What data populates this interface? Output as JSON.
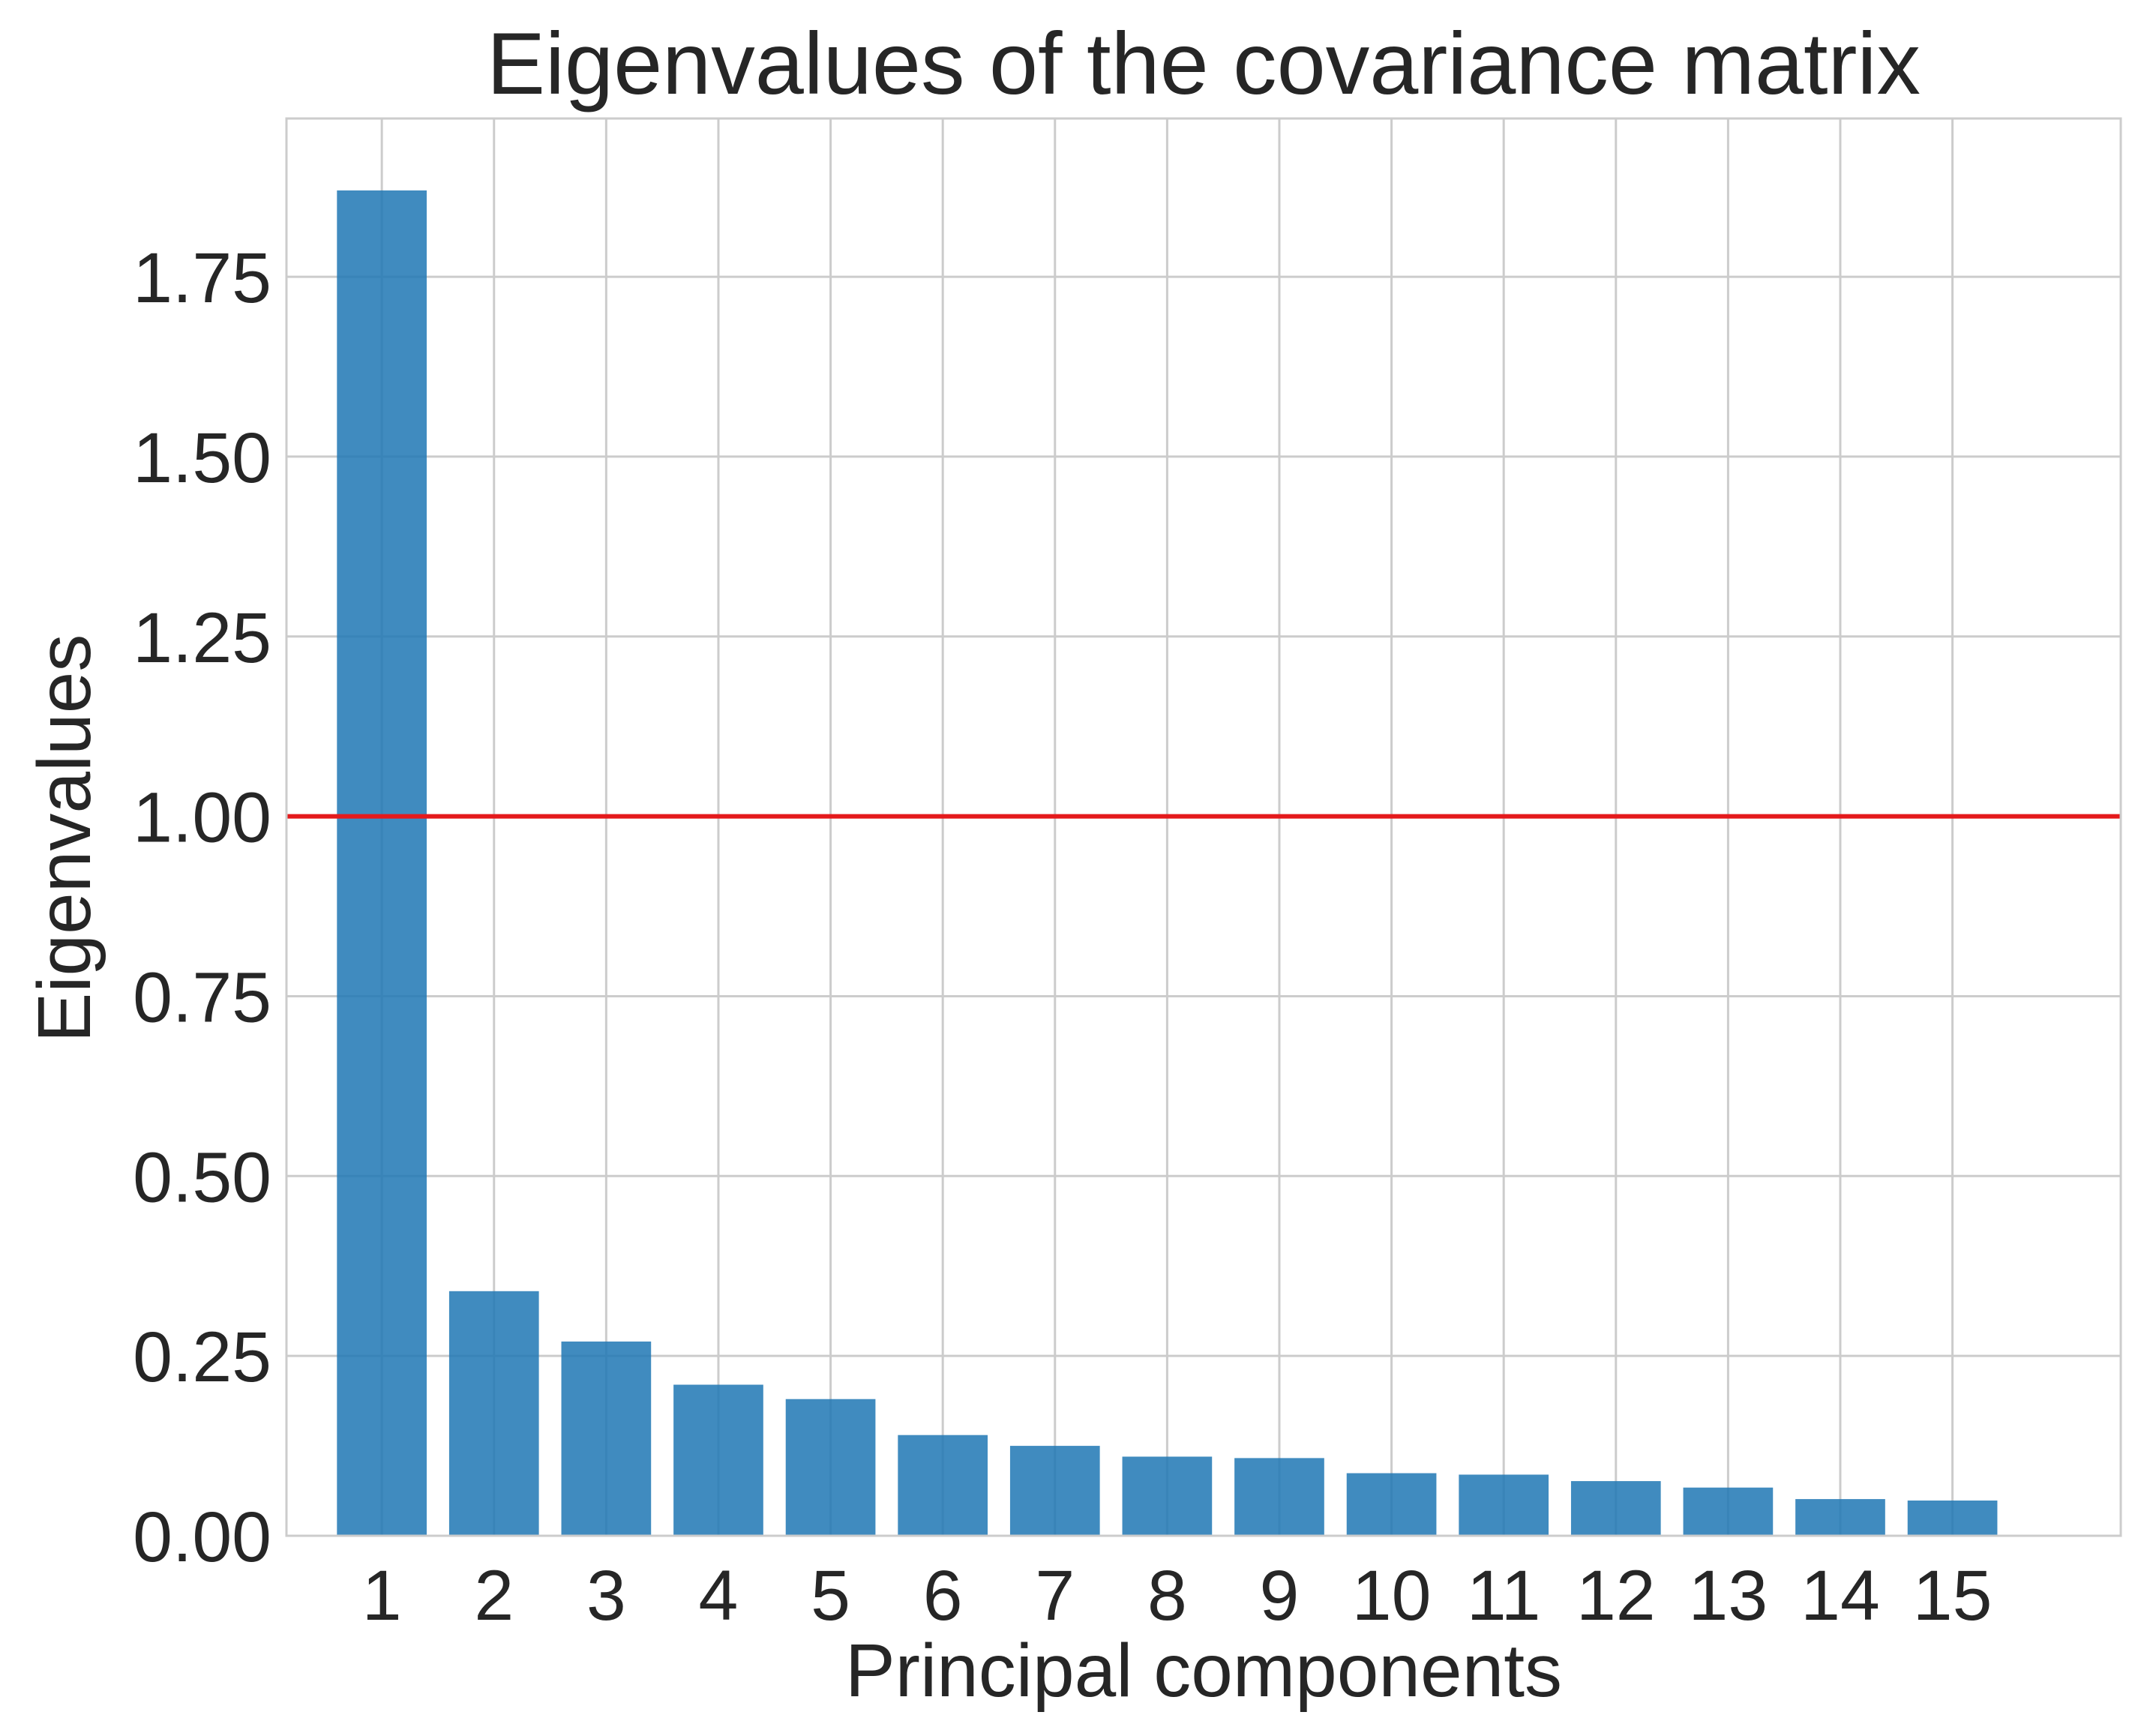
{
  "chart_data": {
    "type": "bar",
    "title": "Eigenvalues of the covariance matrix",
    "xlabel": "Principal components",
    "ylabel": "Eigenvalues",
    "categories": [
      "1",
      "2",
      "3",
      "4",
      "5",
      "6",
      "7",
      "8",
      "9",
      "10",
      "11",
      "12",
      "13",
      "14",
      "15"
    ],
    "values": [
      1.87,
      0.34,
      0.27,
      0.21,
      0.19,
      0.14,
      0.125,
      0.11,
      0.108,
      0.087,
      0.085,
      0.076,
      0.067,
      0.051,
      0.049
    ],
    "ylim": [
      0,
      1.97
    ],
    "xlim": [
      0.15,
      16.5
    ],
    "yticks": [
      "0.00",
      "0.25",
      "0.50",
      "0.75",
      "1.00",
      "1.25",
      "1.50",
      "1.75"
    ],
    "grid": true,
    "bar_color": "#1f77b4",
    "reference_line": {
      "y": 1.0,
      "color": "#e41a1c"
    }
  }
}
